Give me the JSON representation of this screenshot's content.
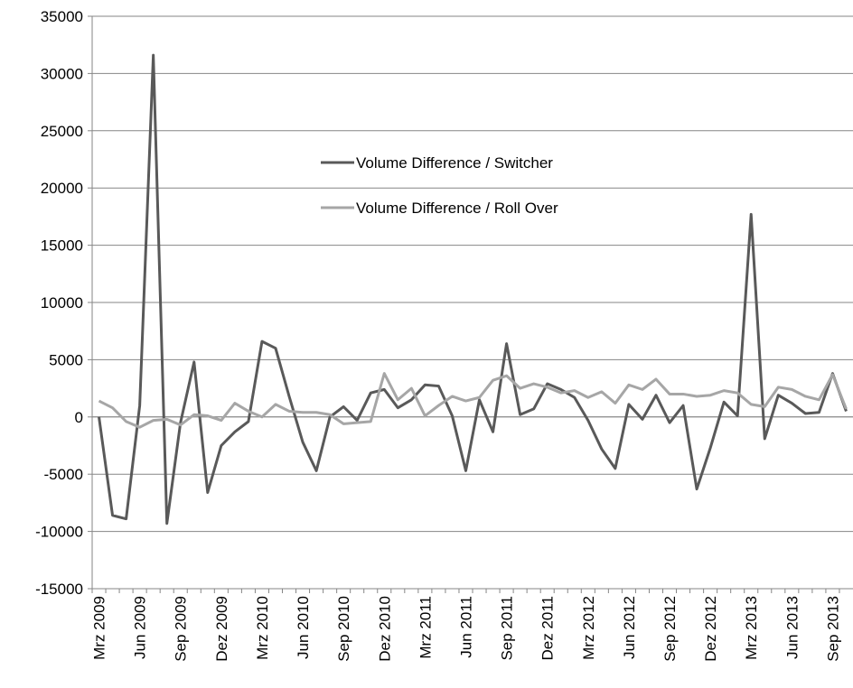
{
  "chart_data": {
    "type": "line",
    "categories": [
      "Mrz 2009",
      null,
      null,
      "Jun 2009",
      null,
      null,
      "Sep 2009",
      null,
      null,
      "Dez 2009",
      null,
      null,
      "Mrz 2010",
      null,
      null,
      "Jun 2010",
      null,
      null,
      "Sep 2010",
      null,
      null,
      "Dez 2010",
      null,
      null,
      "Mrz 2011",
      null,
      null,
      "Jun 2011",
      null,
      null,
      "Sep 2011",
      null,
      null,
      "Dez 2011",
      null,
      null,
      "Mrz 2012",
      null,
      null,
      "Jun 2012",
      null,
      null,
      "Sep 2012",
      null,
      null,
      "Dez 2012",
      null,
      null,
      "Mrz 2013",
      null,
      null,
      "Jun 2013",
      null,
      null,
      "Sep 2013",
      null
    ],
    "series": [
      {
        "name": "Volume Difference / Switcher",
        "color": "#595959",
        "values": [
          0,
          -8600,
          -8900,
          1000,
          31600,
          -9300,
          -500,
          4800,
          -6600,
          -2500,
          -1300,
          -400,
          6600,
          6000,
          1800,
          -2200,
          -4700,
          0,
          900,
          -300,
          2100,
          2400,
          800,
          1500,
          2800,
          2700,
          100,
          -4700,
          1500,
          -1300,
          6400,
          200,
          700,
          2900,
          2400,
          1700,
          -300,
          -2800,
          -4500,
          1100,
          -200,
          1900,
          -500,
          1000,
          -6300,
          -2700,
          1300,
          100,
          17700,
          -1900,
          1900,
          1200,
          300,
          400,
          3800,
          500
        ]
      },
      {
        "name": "Volume Difference / Roll Over",
        "color": "#a6a6a6",
        "values": [
          1400,
          800,
          -400,
          -900,
          -300,
          -200,
          -700,
          200,
          100,
          -300,
          1200,
          500,
          0,
          1100,
          500,
          400,
          400,
          200,
          -600,
          -500,
          -400,
          3800,
          1500,
          2500,
          100,
          1000,
          1800,
          1400,
          1700,
          3200,
          3600,
          2500,
          2900,
          2600,
          2100,
          2300,
          1700,
          2200,
          1200,
          2800,
          2400,
          3300,
          2000,
          2000,
          1800,
          1900,
          2300,
          2100,
          1100,
          900,
          2600,
          2400,
          1800,
          1500,
          3700,
          700
        ]
      }
    ],
    "ylim": [
      -15000,
      35000
    ],
    "yticks": [
      -15000,
      -10000,
      -5000,
      0,
      5000,
      10000,
      15000,
      20000,
      25000,
      30000,
      35000
    ],
    "grid": true
  }
}
